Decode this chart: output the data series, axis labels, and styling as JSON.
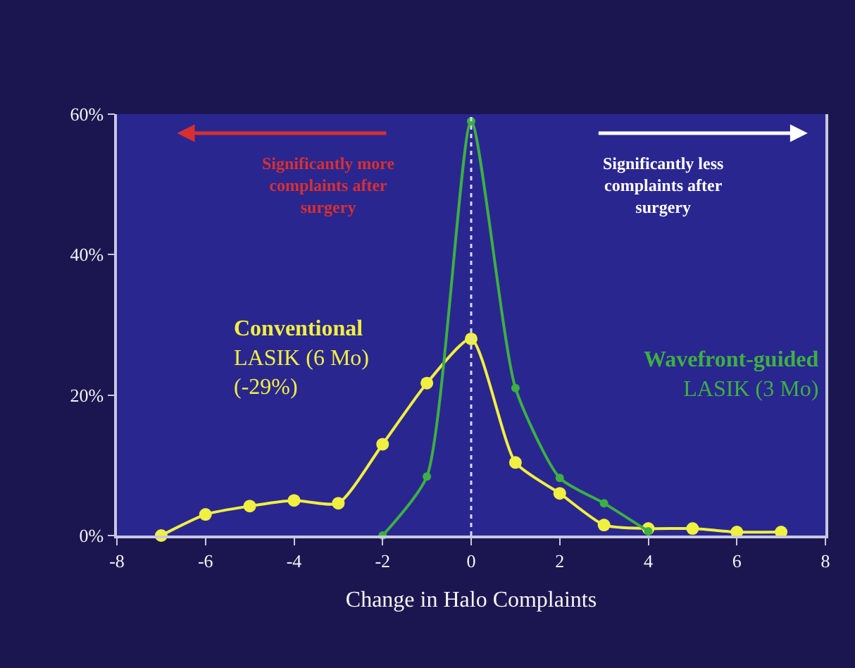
{
  "chart_data": {
    "type": "line",
    "xlabel": "Change in Halo Complaints",
    "xlim": [
      -8,
      8
    ],
    "xticks": [
      -8,
      -6,
      -4,
      -2,
      0,
      2,
      4,
      6,
      8
    ],
    "ylim": [
      0,
      60
    ],
    "yticks": [
      {
        "value": 0,
        "label": "0%"
      },
      {
        "value": 20,
        "label": "20%"
      },
      {
        "value": 40,
        "label": "40%"
      },
      {
        "value": 60,
        "label": "60%"
      }
    ],
    "grid": false,
    "legend": false,
    "marker": "circle",
    "line_style": "solid",
    "series": [
      {
        "name": "Conventional\nLASIK (6 Mo)\n(-29%)",
        "color": "#f0f040",
        "x": [
          -7,
          -6,
          -5,
          -4,
          -3,
          -2,
          -1,
          0,
          1,
          2,
          3,
          4,
          5,
          6,
          7
        ],
        "values": [
          0,
          3,
          4.2,
          5,
          4.6,
          13,
          21.7,
          28,
          10.4,
          6,
          1.5,
          1,
          1,
          0.5,
          0.5
        ]
      },
      {
        "name": "Wavefront-guided\nLASIK (3 Mo)",
        "color": "#3cb043",
        "x": [
          -2,
          -1,
          0,
          1,
          2,
          3,
          4
        ],
        "values": [
          0,
          8.4,
          59,
          21,
          8.2,
          4.6,
          0.6
        ]
      }
    ],
    "ref_lines": [
      {
        "axis": "x",
        "value": 0,
        "color": "#d8d8f0",
        "line_style": "dotted"
      }
    ],
    "annotations": [
      "Significantly more\ncomplaints after\nsurgery",
      "Significantly less\ncomplaints after\nsurgery"
    ]
  }
}
